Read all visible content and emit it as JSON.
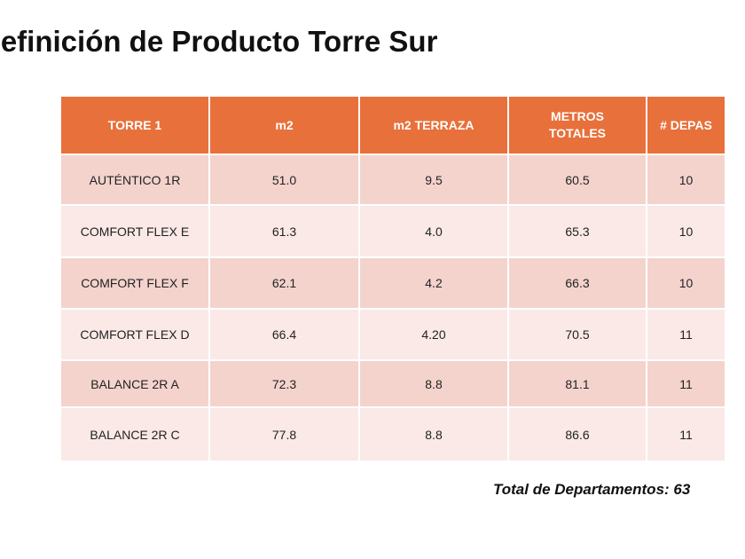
{
  "title": "Definición de Producto Torre Sur",
  "table": {
    "headers": [
      "TORRE 1",
      "m2",
      "m2 TERRAZA",
      "METROS TOTALES",
      "# DEPAS"
    ],
    "rows": [
      [
        "AUTÉNTICO 1R",
        "51.0",
        "9.5",
        "60.5",
        "10"
      ],
      [
        "COMFORT FLEX E",
        "61.3",
        "4.0",
        "65.3",
        "10"
      ],
      [
        "COMFORT FLEX F",
        "62.1",
        "4.2",
        "66.3",
        "10"
      ],
      [
        "COMFORT FLEX D",
        "66.4",
        "4.20",
        "70.5",
        "11"
      ],
      [
        "BALANCE 2R A",
        "72.3",
        "8.8",
        "81.1",
        "11"
      ],
      [
        "BALANCE 2R C",
        "77.8",
        "8.8",
        "86.6",
        "11"
      ]
    ]
  },
  "total": "Total de Departamentos: 63",
  "colors": {
    "header": "#E8703A",
    "row_odd": "#F4D3CD",
    "row_even": "#FAE9E6"
  }
}
